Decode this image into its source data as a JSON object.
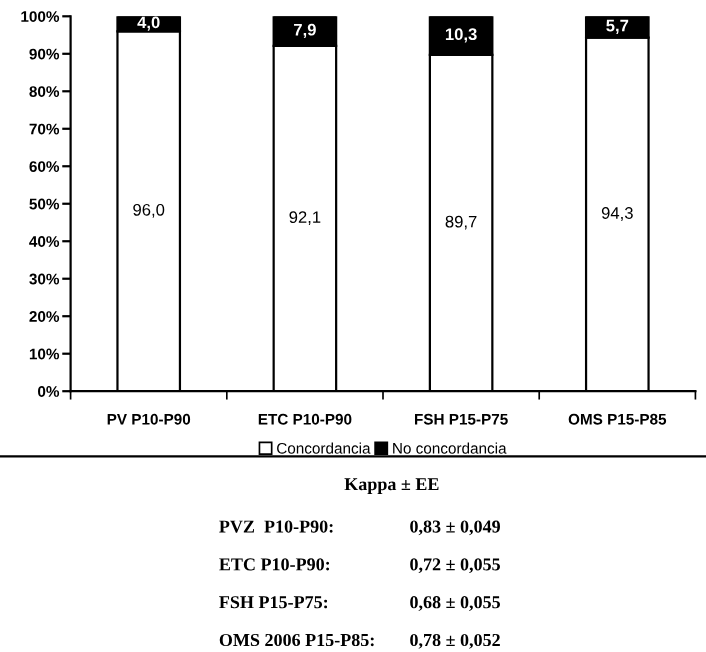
{
  "chart_data": {
    "type": "bar",
    "stacked": true,
    "categories": [
      "PV P10-P90",
      "ETC P10-P90",
      "FSH P15-P75",
      "OMS P15-P85"
    ],
    "series": [
      {
        "name": "Concordancia",
        "color": "#ffffff",
        "values": [
          96.0,
          92.1,
          89.7,
          94.3
        ],
        "value_labels": [
          "96,0",
          "92,1",
          "89,7",
          "94,3"
        ]
      },
      {
        "name": "No concordancia",
        "color": "#000000",
        "values": [
          4.0,
          7.9,
          10.3,
          5.7
        ],
        "value_labels": [
          "4,0",
          "7,9",
          "10,3",
          "5,7"
        ]
      }
    ],
    "ylim": [
      0,
      100
    ],
    "yticks": [
      {
        "value": 0,
        "label": "0%"
      },
      {
        "value": 10,
        "label": "10%"
      },
      {
        "value": 20,
        "label": "20%"
      },
      {
        "value": 30,
        "label": "30%"
      },
      {
        "value": 40,
        "label": "40%"
      },
      {
        "value": 50,
        "label": "50%"
      },
      {
        "value": 60,
        "label": "60%"
      },
      {
        "value": 70,
        "label": "70%"
      },
      {
        "value": 80,
        "label": "80%"
      },
      {
        "value": 90,
        "label": "90%"
      },
      {
        "value": 100,
        "label": "100%"
      }
    ],
    "grid": false,
    "legend": "bottom",
    "annotations": [
      "Kappa ± EE",
      "PVZ  P10-P90:",
      "0,83 ± 0,049",
      "ETC P10-P90:",
      "0,72 ± 0,055",
      "FSH P15-P75:",
      "0,68 ± 0,055",
      "OMS 2006 P15-P85:",
      "0,78 ± 0,052"
    ]
  }
}
